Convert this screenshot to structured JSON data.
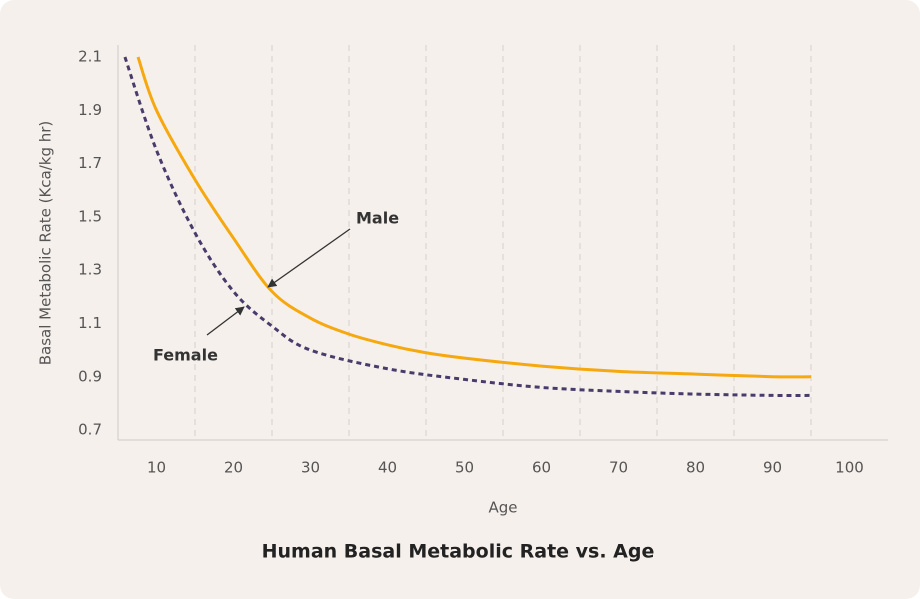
{
  "chart_data": {
    "type": "line",
    "title": "Human Basal Metabolic Rate vs. Age",
    "x_label": "Age",
    "y_label": "Basal Metabolic Rate (Kca/kg hr)",
    "xlim": [
      5,
      105
    ],
    "ylim": [
      0.66,
      2.12
    ],
    "xticks": [
      10,
      20,
      30,
      40,
      50,
      60,
      70,
      80,
      90,
      100
    ],
    "yticks": [
      0.7,
      0.9,
      1.1,
      1.3,
      1.5,
      1.7,
      1.9,
      2.1
    ],
    "xgrid": [
      15,
      25,
      35,
      45,
      55,
      65,
      75,
      85,
      95
    ],
    "series": [
      {
        "name": "Male",
        "color": "#f6a80f",
        "dashed": false,
        "x": [
          7.6,
          10,
          15,
          20,
          25,
          30,
          35,
          40,
          45,
          50,
          60,
          70,
          80,
          90,
          95
        ],
        "values": [
          2.1,
          1.9,
          1.64,
          1.42,
          1.22,
          1.12,
          1.06,
          1.02,
          0.99,
          0.97,
          0.94,
          0.92,
          0.91,
          0.9,
          0.9
        ]
      },
      {
        "name": "Female",
        "color": "#4a3b6b",
        "dashed": true,
        "x": [
          5.9,
          10,
          15,
          20,
          25,
          30,
          40,
          50,
          60,
          70,
          80,
          90,
          95
        ],
        "values": [
          2.1,
          1.75,
          1.44,
          1.22,
          1.09,
          1.0,
          0.93,
          0.89,
          0.86,
          0.845,
          0.835,
          0.83,
          0.83
        ]
      }
    ]
  }
}
